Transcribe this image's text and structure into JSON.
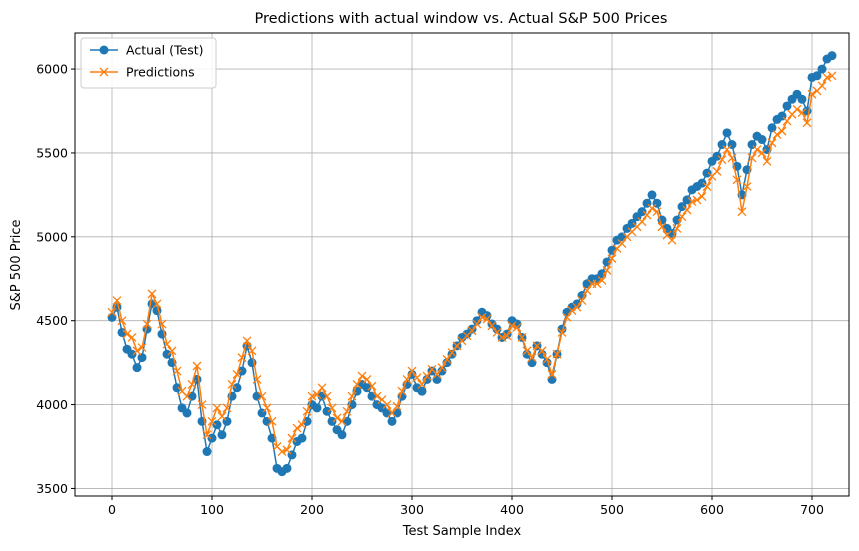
{
  "colors": {
    "actual": "#1f77b4",
    "predictions": "#ff7f0e",
    "grid": "#b0b0b0",
    "axis": "#000000"
  },
  "chart_data": {
    "type": "line",
    "title": "Predictions with actual window vs. Actual S&P 500 Prices",
    "xlabel": "Test Sample Index",
    "ylabel": "S&P 500 Price",
    "xlim": [
      -37,
      737
    ],
    "ylim": [
      3455,
      6215
    ],
    "xticks": [
      0,
      100,
      200,
      300,
      400,
      500,
      600,
      700
    ],
    "yticks": [
      3500,
      4000,
      4500,
      5000,
      5500,
      6000
    ],
    "grid": true,
    "legend_position": "top-left",
    "series": [
      {
        "name": "Actual (Test)",
        "marker": "circle",
        "x": [
          0,
          5,
          10,
          15,
          20,
          25,
          30,
          35,
          40,
          45,
          50,
          55,
          60,
          65,
          70,
          75,
          80,
          85,
          90,
          95,
          100,
          105,
          110,
          115,
          120,
          125,
          130,
          135,
          140,
          145,
          150,
          155,
          160,
          165,
          170,
          175,
          180,
          185,
          190,
          195,
          200,
          205,
          210,
          215,
          220,
          225,
          230,
          235,
          240,
          245,
          250,
          255,
          260,
          265,
          270,
          275,
          280,
          285,
          290,
          295,
          300,
          305,
          310,
          315,
          320,
          325,
          330,
          335,
          340,
          345,
          350,
          355,
          360,
          365,
          370,
          375,
          380,
          385,
          390,
          395,
          400,
          405,
          410,
          415,
          420,
          425,
          430,
          435,
          440,
          445,
          450,
          455,
          460,
          465,
          470,
          475,
          480,
          485,
          490,
          495,
          500,
          505,
          510,
          515,
          520,
          525,
          530,
          535,
          540,
          545,
          550,
          555,
          560,
          565,
          570,
          575,
          580,
          585,
          590,
          595,
          600,
          605,
          610,
          615,
          620,
          625,
          630,
          635,
          640,
          645,
          650,
          655,
          660,
          665,
          670,
          675,
          680,
          685,
          690,
          695,
          700,
          705,
          710,
          715,
          720
        ],
        "y": [
          4520,
          4580,
          4430,
          4330,
          4300,
          4220,
          4280,
          4450,
          4600,
          4560,
          4420,
          4300,
          4250,
          4100,
          3980,
          3950,
          4050,
          4150,
          3900,
          3720,
          3800,
          3880,
          3820,
          3900,
          4050,
          4100,
          4200,
          4350,
          4250,
          4050,
          3950,
          3900,
          3800,
          3620,
          3600,
          3620,
          3700,
          3780,
          3800,
          3900,
          4000,
          3980,
          4050,
          3960,
          3900,
          3850,
          3820,
          3900,
          4000,
          4080,
          4120,
          4100,
          4050,
          4000,
          3980,
          3950,
          3900,
          3950,
          4050,
          4120,
          4180,
          4100,
          4080,
          4150,
          4200,
          4150,
          4200,
          4250,
          4300,
          4350,
          4400,
          4420,
          4450,
          4500,
          4550,
          4530,
          4480,
          4450,
          4400,
          4420,
          4500,
          4480,
          4400,
          4300,
          4250,
          4350,
          4300,
          4250,
          4150,
          4300,
          4450,
          4550,
          4580,
          4600,
          4650,
          4720,
          4750,
          4750,
          4780,
          4850,
          4920,
          4980,
          5000,
          5050,
          5080,
          5120,
          5150,
          5200,
          5250,
          5200,
          5100,
          5050,
          5020,
          5100,
          5180,
          5220,
          5280,
          5300,
          5320,
          5380,
          5450,
          5480,
          5550,
          5620,
          5550,
          5420,
          5250,
          5400,
          5550,
          5600,
          5580,
          5520,
          5650,
          5700,
          5720,
          5780,
          5820,
          5850,
          5820,
          5750,
          5950,
          5960,
          6000,
          6060,
          6080
        ]
      },
      {
        "name": "Predictions",
        "marker": "x",
        "x": [
          0,
          5,
          10,
          15,
          20,
          25,
          30,
          35,
          40,
          45,
          50,
          55,
          60,
          65,
          70,
          75,
          80,
          85,
          90,
          95,
          100,
          105,
          110,
          115,
          120,
          125,
          130,
          135,
          140,
          145,
          150,
          155,
          160,
          165,
          170,
          175,
          180,
          185,
          190,
          195,
          200,
          205,
          210,
          215,
          220,
          225,
          230,
          235,
          240,
          245,
          250,
          255,
          260,
          265,
          270,
          275,
          280,
          285,
          290,
          295,
          300,
          305,
          310,
          315,
          320,
          325,
          330,
          335,
          340,
          345,
          350,
          355,
          360,
          365,
          370,
          375,
          380,
          385,
          390,
          395,
          400,
          405,
          410,
          415,
          420,
          425,
          430,
          435,
          440,
          445,
          450,
          455,
          460,
          465,
          470,
          475,
          480,
          485,
          490,
          495,
          500,
          505,
          510,
          515,
          520,
          525,
          530,
          535,
          540,
          545,
          550,
          555,
          560,
          565,
          570,
          575,
          580,
          585,
          590,
          595,
          600,
          605,
          610,
          615,
          620,
          625,
          630,
          635,
          640,
          645,
          650,
          655,
          660,
          665,
          670,
          675,
          680,
          685,
          690,
          695,
          700,
          705,
          710,
          715,
          720
        ],
        "y": [
          4550,
          4620,
          4500,
          4420,
          4400,
          4320,
          4340,
          4480,
          4660,
          4600,
          4480,
          4360,
          4320,
          4200,
          4080,
          4050,
          4120,
          4230,
          4000,
          3820,
          3900,
          3980,
          3930,
          3980,
          4120,
          4180,
          4280,
          4380,
          4320,
          4150,
          4050,
          3980,
          3900,
          3750,
          3720,
          3730,
          3800,
          3860,
          3880,
          3960,
          4050,
          4060,
          4100,
          4050,
          3980,
          3920,
          3900,
          3960,
          4050,
          4120,
          4170,
          4150,
          4110,
          4050,
          4030,
          4000,
          3950,
          3990,
          4080,
          4150,
          4200,
          4160,
          4120,
          4170,
          4210,
          4180,
          4220,
          4270,
          4310,
          4350,
          4380,
          4410,
          4440,
          4480,
          4520,
          4510,
          4470,
          4430,
          4400,
          4410,
          4470,
          4460,
          4400,
          4320,
          4280,
          4350,
          4320,
          4270,
          4180,
          4300,
          4430,
          4520,
          4560,
          4580,
          4620,
          4680,
          4720,
          4720,
          4740,
          4800,
          4870,
          4930,
          4960,
          5000,
          5030,
          5060,
          5090,
          5130,
          5170,
          5150,
          5060,
          5010,
          4980,
          5050,
          5120,
          5160,
          5210,
          5220,
          5240,
          5300,
          5360,
          5390,
          5460,
          5520,
          5470,
          5340,
          5150,
          5300,
          5470,
          5520,
          5500,
          5450,
          5560,
          5610,
          5630,
          5690,
          5730,
          5760,
          5740,
          5680,
          5850,
          5870,
          5900,
          5950,
          5960
        ]
      }
    ]
  }
}
